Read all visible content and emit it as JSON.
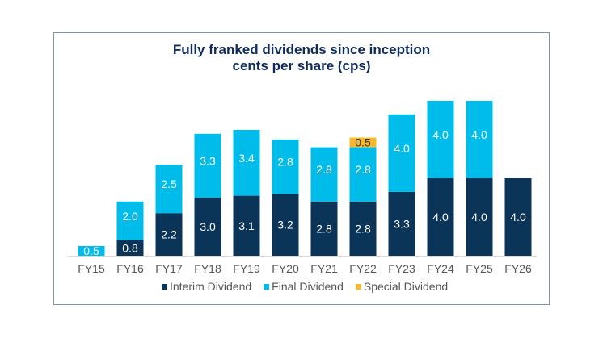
{
  "chart_data": {
    "type": "bar",
    "stacked": true,
    "title": "Fully franked dividends since inception",
    "subtitle": "cents per share (cps)",
    "categories": [
      "FY15",
      "FY16",
      "FY17",
      "FY18",
      "FY19",
      "FY20",
      "FY21",
      "FY22",
      "FY23",
      "FY24",
      "FY25",
      "FY26"
    ],
    "series": [
      {
        "name": "Interim Dividend",
        "color": "#0a3558",
        "values": [
          0,
          0.8,
          2.2,
          3.0,
          3.1,
          3.2,
          2.8,
          2.8,
          3.3,
          4.0,
          4.0,
          4.0
        ]
      },
      {
        "name": "Final Dividend",
        "color": "#00bcea",
        "values": [
          0.5,
          2.0,
          2.5,
          3.3,
          3.4,
          2.8,
          2.8,
          2.8,
          4.0,
          4.0,
          4.0,
          0
        ]
      },
      {
        "name": "Special Dividend",
        "color": "#f5b82e",
        "values": [
          0,
          0,
          0,
          0,
          0,
          0,
          0,
          0.5,
          0,
          0,
          0,
          0
        ]
      }
    ],
    "ylim": [
      0,
      8
    ],
    "grid": false,
    "legend": "bottom",
    "xlabel": "",
    "ylabel": ""
  }
}
